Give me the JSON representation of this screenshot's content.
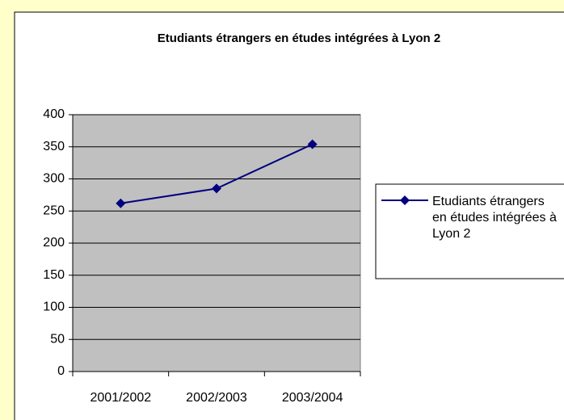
{
  "chart_data": {
    "type": "line",
    "title": "Etudiants étrangers en études intégrées à Lyon 2",
    "categories": [
      "2001/2002",
      "2002/2003",
      "2003/2004"
    ],
    "series": [
      {
        "name": "Etudiants étrangers en études intégrées à Lyon 2",
        "color": "#000080",
        "values": [
          262,
          285,
          354
        ]
      }
    ],
    "ylim": [
      0,
      400
    ],
    "yticks": [
      0,
      50,
      100,
      150,
      200,
      250,
      300,
      350,
      400
    ],
    "grid": true,
    "legend": "right",
    "plot_background": "#c0c0c0"
  }
}
